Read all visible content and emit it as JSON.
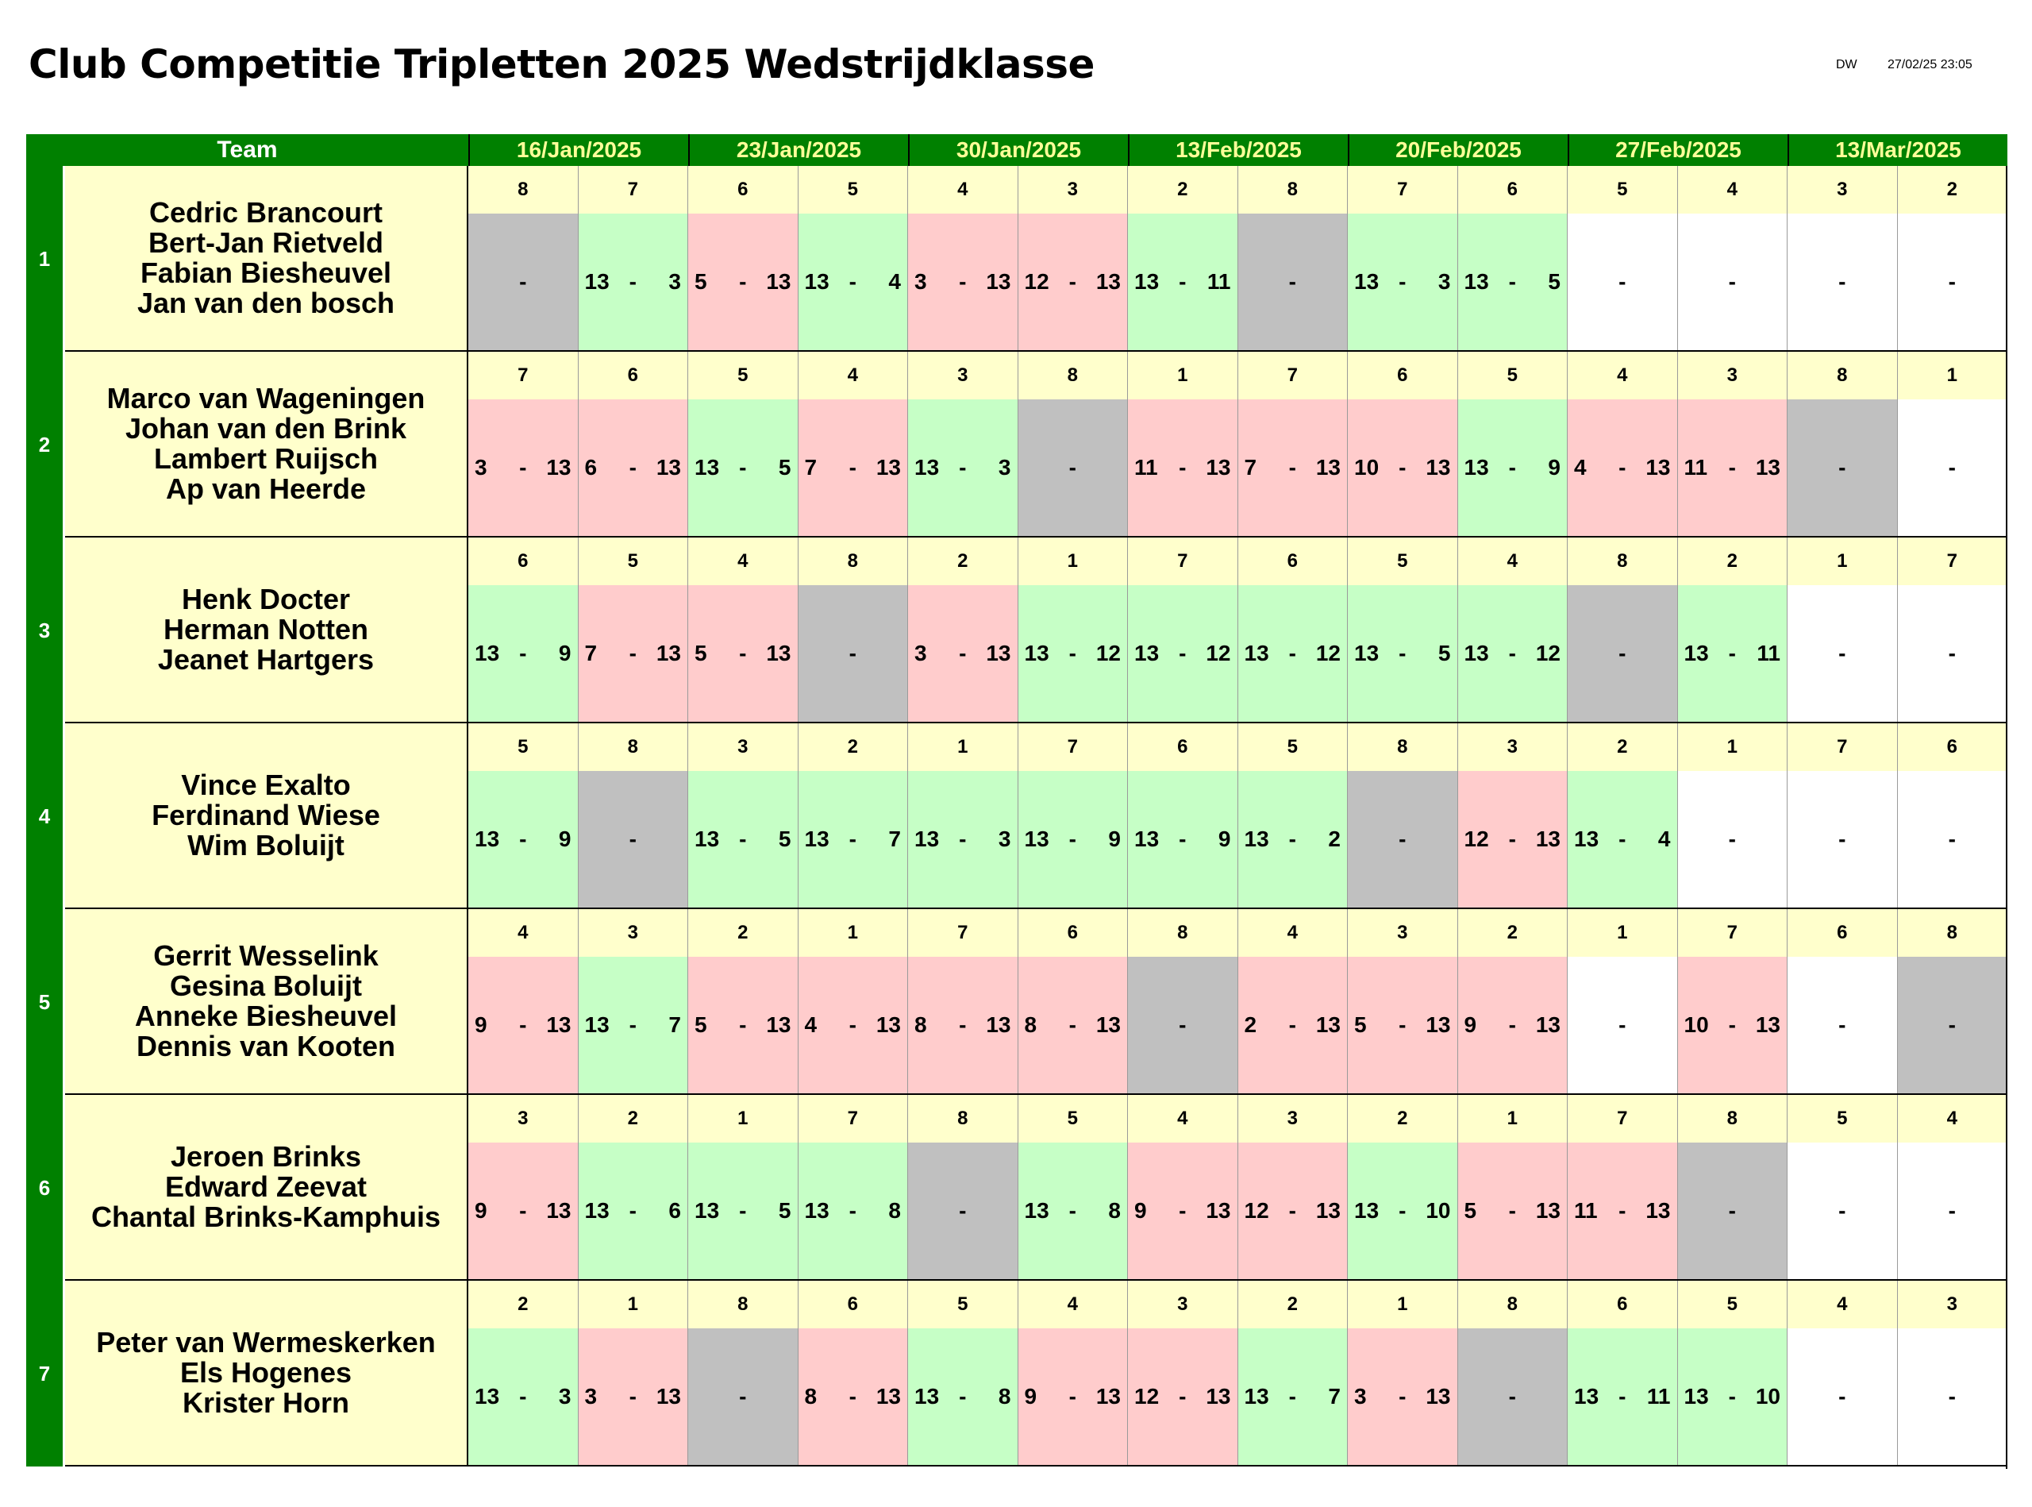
{
  "title": "Club Competitie Tripletten 2025 Wedstrijdklasse",
  "meta": {
    "author": "DW",
    "timestamp": "27/02/25 23:05"
  },
  "header": {
    "team_label": "Team",
    "dates": [
      "16/Jan/2025",
      "23/Jan/2025",
      "30/Jan/2025",
      "13/Feb/2025",
      "20/Feb/2025",
      "27/Feb/2025",
      "13/Mar/2025"
    ]
  },
  "colors": {
    "header_bg": "#008000",
    "header_text": "#ffff99",
    "team_bg": "#ffffcc",
    "win": "#c6ffc6",
    "loss": "#ffcccc",
    "bye": "#c0c0c0",
    "unplayed": "#ffffff"
  },
  "teams": [
    {
      "num": "1",
      "players": [
        "Cedric Brancourt",
        "Bert-Jan Rietveld",
        "Fabian Biesheuvel",
        "Jan van den bosch"
      ],
      "opponents": [
        "8",
        "7",
        "6",
        "5",
        "4",
        "3",
        "2",
        "8",
        "7",
        "6",
        "5",
        "4",
        "3",
        "2"
      ],
      "results": [
        {
          "s": "b",
          "a": "",
          "b": ""
        },
        {
          "s": "w",
          "a": "13",
          "b": "3"
        },
        {
          "s": "l",
          "a": "5",
          "b": "13"
        },
        {
          "s": "w",
          "a": "13",
          "b": "4"
        },
        {
          "s": "l",
          "a": "3",
          "b": "13"
        },
        {
          "s": "l",
          "a": "12",
          "b": "13"
        },
        {
          "s": "w",
          "a": "13",
          "b": "11"
        },
        {
          "s": "b",
          "a": "",
          "b": ""
        },
        {
          "s": "w",
          "a": "13",
          "b": "3"
        },
        {
          "s": "w",
          "a": "13",
          "b": "5"
        },
        {
          "s": "e",
          "a": "",
          "b": ""
        },
        {
          "s": "e",
          "a": "",
          "b": ""
        },
        {
          "s": "e",
          "a": "",
          "b": ""
        },
        {
          "s": "e",
          "a": "",
          "b": ""
        }
      ]
    },
    {
      "num": "2",
      "players": [
        "Marco van Wageningen",
        "Johan van den Brink",
        "Lambert Ruijsch",
        "Ap van Heerde"
      ],
      "opponents": [
        "7",
        "6",
        "5",
        "4",
        "3",
        "8",
        "1",
        "7",
        "6",
        "5",
        "4",
        "3",
        "8",
        "1"
      ],
      "results": [
        {
          "s": "l",
          "a": "3",
          "b": "13"
        },
        {
          "s": "l",
          "a": "6",
          "b": "13"
        },
        {
          "s": "w",
          "a": "13",
          "b": "5"
        },
        {
          "s": "l",
          "a": "7",
          "b": "13"
        },
        {
          "s": "w",
          "a": "13",
          "b": "3"
        },
        {
          "s": "b",
          "a": "",
          "b": ""
        },
        {
          "s": "l",
          "a": "11",
          "b": "13"
        },
        {
          "s": "l",
          "a": "7",
          "b": "13"
        },
        {
          "s": "l",
          "a": "10",
          "b": "13"
        },
        {
          "s": "w",
          "a": "13",
          "b": "9"
        },
        {
          "s": "l",
          "a": "4",
          "b": "13"
        },
        {
          "s": "l",
          "a": "11",
          "b": "13"
        },
        {
          "s": "b",
          "a": "",
          "b": ""
        },
        {
          "s": "e",
          "a": "",
          "b": ""
        }
      ]
    },
    {
      "num": "3",
      "players": [
        "Henk Docter",
        "Herman Notten",
        "Jeanet Hartgers"
      ],
      "opponents": [
        "6",
        "5",
        "4",
        "8",
        "2",
        "1",
        "7",
        "6",
        "5",
        "4",
        "8",
        "2",
        "1",
        "7"
      ],
      "results": [
        {
          "s": "w",
          "a": "13",
          "b": "9"
        },
        {
          "s": "l",
          "a": "7",
          "b": "13"
        },
        {
          "s": "l",
          "a": "5",
          "b": "13"
        },
        {
          "s": "b",
          "a": "",
          "b": ""
        },
        {
          "s": "l",
          "a": "3",
          "b": "13"
        },
        {
          "s": "w",
          "a": "13",
          "b": "12"
        },
        {
          "s": "w",
          "a": "13",
          "b": "12"
        },
        {
          "s": "w",
          "a": "13",
          "b": "12"
        },
        {
          "s": "w",
          "a": "13",
          "b": "5"
        },
        {
          "s": "w",
          "a": "13",
          "b": "12"
        },
        {
          "s": "b",
          "a": "",
          "b": ""
        },
        {
          "s": "w",
          "a": "13",
          "b": "11"
        },
        {
          "s": "e",
          "a": "",
          "b": ""
        },
        {
          "s": "e",
          "a": "",
          "b": ""
        }
      ]
    },
    {
      "num": "4",
      "players": [
        "Vince Exalto",
        "Ferdinand Wiese",
        "Wim Boluijt"
      ],
      "opponents": [
        "5",
        "8",
        "3",
        "2",
        "1",
        "7",
        "6",
        "5",
        "8",
        "3",
        "2",
        "1",
        "7",
        "6"
      ],
      "results": [
        {
          "s": "w",
          "a": "13",
          "b": "9"
        },
        {
          "s": "b",
          "a": "",
          "b": ""
        },
        {
          "s": "w",
          "a": "13",
          "b": "5"
        },
        {
          "s": "w",
          "a": "13",
          "b": "7"
        },
        {
          "s": "w",
          "a": "13",
          "b": "3"
        },
        {
          "s": "w",
          "a": "13",
          "b": "9"
        },
        {
          "s": "w",
          "a": "13",
          "b": "9"
        },
        {
          "s": "w",
          "a": "13",
          "b": "2"
        },
        {
          "s": "b",
          "a": "",
          "b": ""
        },
        {
          "s": "l",
          "a": "12",
          "b": "13"
        },
        {
          "s": "w",
          "a": "13",
          "b": "4"
        },
        {
          "s": "e",
          "a": "",
          "b": ""
        },
        {
          "s": "e",
          "a": "",
          "b": ""
        },
        {
          "s": "e",
          "a": "",
          "b": ""
        }
      ]
    },
    {
      "num": "5",
      "players": [
        "Gerrit Wesselink",
        "Gesina Boluijt",
        "Anneke Biesheuvel",
        "Dennis van Kooten"
      ],
      "opponents": [
        "4",
        "3",
        "2",
        "1",
        "7",
        "6",
        "8",
        "4",
        "3",
        "2",
        "1",
        "7",
        "6",
        "8"
      ],
      "results": [
        {
          "s": "l",
          "a": "9",
          "b": "13"
        },
        {
          "s": "w",
          "a": "13",
          "b": "7"
        },
        {
          "s": "l",
          "a": "5",
          "b": "13"
        },
        {
          "s": "l",
          "a": "4",
          "b": "13"
        },
        {
          "s": "l",
          "a": "8",
          "b": "13"
        },
        {
          "s": "l",
          "a": "8",
          "b": "13"
        },
        {
          "s": "b",
          "a": "",
          "b": ""
        },
        {
          "s": "l",
          "a": "2",
          "b": "13"
        },
        {
          "s": "l",
          "a": "5",
          "b": "13"
        },
        {
          "s": "l",
          "a": "9",
          "b": "13"
        },
        {
          "s": "e",
          "a": "",
          "b": ""
        },
        {
          "s": "l",
          "a": "10",
          "b": "13"
        },
        {
          "s": "e",
          "a": "",
          "b": ""
        },
        {
          "s": "b",
          "a": "",
          "b": ""
        }
      ]
    },
    {
      "num": "6",
      "players": [
        "Jeroen Brinks",
        "Edward Zeevat",
        "Chantal Brinks-Kamphuis"
      ],
      "opponents": [
        "3",
        "2",
        "1",
        "7",
        "8",
        "5",
        "4",
        "3",
        "2",
        "1",
        "7",
        "8",
        "5",
        "4"
      ],
      "results": [
        {
          "s": "l",
          "a": "9",
          "b": "13"
        },
        {
          "s": "w",
          "a": "13",
          "b": "6"
        },
        {
          "s": "w",
          "a": "13",
          "b": "5"
        },
        {
          "s": "w",
          "a": "13",
          "b": "8"
        },
        {
          "s": "b",
          "a": "",
          "b": ""
        },
        {
          "s": "w",
          "a": "13",
          "b": "8"
        },
        {
          "s": "l",
          "a": "9",
          "b": "13"
        },
        {
          "s": "l",
          "a": "12",
          "b": "13"
        },
        {
          "s": "w",
          "a": "13",
          "b": "10"
        },
        {
          "s": "l",
          "a": "5",
          "b": "13"
        },
        {
          "s": "l",
          "a": "11",
          "b": "13"
        },
        {
          "s": "b",
          "a": "",
          "b": ""
        },
        {
          "s": "e",
          "a": "",
          "b": ""
        },
        {
          "s": "e",
          "a": "",
          "b": ""
        }
      ]
    },
    {
      "num": "7",
      "players": [
        "Peter van Wermeskerken",
        "Els Hogenes",
        "Krister Horn"
      ],
      "opponents": [
        "2",
        "1",
        "8",
        "6",
        "5",
        "4",
        "3",
        "2",
        "1",
        "8",
        "6",
        "5",
        "4",
        "3"
      ],
      "results": [
        {
          "s": "w",
          "a": "13",
          "b": "3"
        },
        {
          "s": "l",
          "a": "3",
          "b": "13"
        },
        {
          "s": "b",
          "a": "",
          "b": ""
        },
        {
          "s": "l",
          "a": "8",
          "b": "13"
        },
        {
          "s": "w",
          "a": "13",
          "b": "8"
        },
        {
          "s": "l",
          "a": "9",
          "b": "13"
        },
        {
          "s": "l",
          "a": "12",
          "b": "13"
        },
        {
          "s": "w",
          "a": "13",
          "b": "7"
        },
        {
          "s": "l",
          "a": "3",
          "b": "13"
        },
        {
          "s": "b",
          "a": "",
          "b": ""
        },
        {
          "s": "w",
          "a": "13",
          "b": "11"
        },
        {
          "s": "w",
          "a": "13",
          "b": "10"
        },
        {
          "s": "e",
          "a": "",
          "b": ""
        },
        {
          "s": "e",
          "a": "",
          "b": ""
        }
      ]
    }
  ]
}
